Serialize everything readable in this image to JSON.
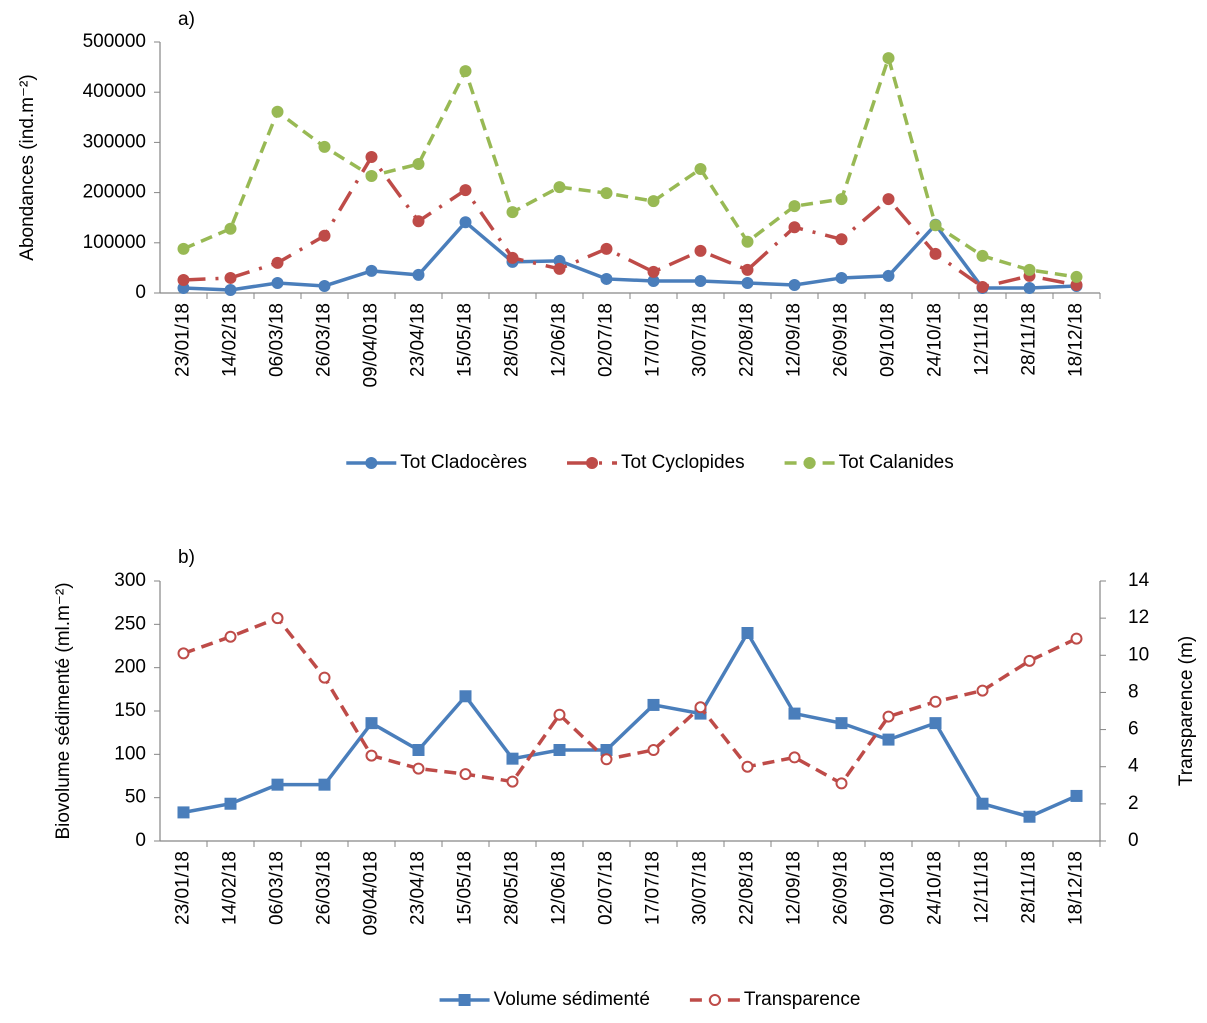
{
  "chart_data": [
    {
      "type": "line",
      "title": "a)",
      "y_label": "Abondances (ind.m⁻²)",
      "categories": [
        "23/01/18",
        "14/02/18",
        "06/03/18",
        "26/03/18",
        "09/04/018",
        "23/04/18",
        "15/05/18",
        "28/05/18",
        "12/06/18",
        "02/07/18",
        "17/07/18",
        "30/07/18",
        "22/08/18",
        "12/09/18",
        "26/09/18",
        "09/10/18",
        "24/10/18",
        "12/11/18",
        "28/11/18",
        "18/12/18"
      ],
      "ylim": [
        0,
        500000
      ],
      "yticks": [
        0,
        100000,
        200000,
        300000,
        400000,
        500000
      ],
      "series": [
        {
          "name": "Tot Cladocères",
          "color": "#4a7ebb",
          "line_style": "solid",
          "marker": "circle",
          "values": [
            10000,
            6000,
            20000,
            14000,
            44000,
            36000,
            141000,
            62000,
            64000,
            28000,
            24000,
            24000,
            20000,
            16000,
            30000,
            34000,
            136000,
            10000,
            10000,
            14000
          ]
        },
        {
          "name": "Tot Cyclopides",
          "color": "#be4b48",
          "line_style": "long-dash",
          "marker": "circle",
          "values": [
            26000,
            30000,
            60000,
            114000,
            271000,
            143000,
            205000,
            70000,
            48000,
            88000,
            42000,
            84000,
            46000,
            131000,
            107000,
            187000,
            78000,
            12000,
            34000,
            16000
          ]
        },
        {
          "name": "Tot Calanides",
          "color": "#98b954",
          "line_style": "dashed",
          "marker": "circle",
          "values": [
            88000,
            128000,
            361000,
            291000,
            233000,
            257000,
            442000,
            161000,
            211000,
            199000,
            183000,
            247000,
            102000,
            173000,
            187000,
            468000,
            135000,
            74000,
            46000,
            32000
          ]
        }
      ]
    },
    {
      "type": "line",
      "title": "b)",
      "y_label": "Biovolume sédimenté (ml.m⁻²)",
      "y2_label": "Transparence (m)",
      "categories": [
        "23/01/18",
        "14/02/18",
        "06/03/18",
        "26/03/18",
        "09/04/018",
        "23/04/18",
        "15/05/18",
        "28/05/18",
        "12/06/18",
        "02/07/18",
        "17/07/18",
        "30/07/18",
        "22/08/18",
        "12/09/18",
        "26/09/18",
        "09/10/18",
        "24/10/18",
        "12/11/18",
        "28/11/18",
        "18/12/18"
      ],
      "ylim": [
        0,
        300
      ],
      "yticks": [
        0,
        50,
        100,
        150,
        200,
        250,
        300
      ],
      "y2lim": [
        0,
        14
      ],
      "y2ticks": [
        0,
        2,
        4,
        6,
        8,
        10,
        12,
        14
      ],
      "series": [
        {
          "name": "Volume sédimenté",
          "color": "#4a7ebb",
          "line_style": "solid",
          "marker": "square",
          "values": [
            33,
            43,
            65,
            65,
            136,
            105,
            167,
            95,
            105,
            105,
            157,
            147,
            240,
            147,
            136,
            117,
            136,
            43,
            28,
            52
          ]
        },
        {
          "name": "Transparence",
          "color": "#be4b48",
          "line_style": "dashed",
          "marker": "open-circle",
          "axis": "y2",
          "values": [
            10.1,
            11.0,
            12.0,
            8.8,
            4.6,
            3.9,
            3.6,
            3.2,
            6.8,
            4.4,
            4.9,
            7.2,
            4.0,
            4.5,
            3.1,
            6.7,
            7.5,
            8.1,
            9.7,
            10.9
          ]
        }
      ]
    }
  ]
}
